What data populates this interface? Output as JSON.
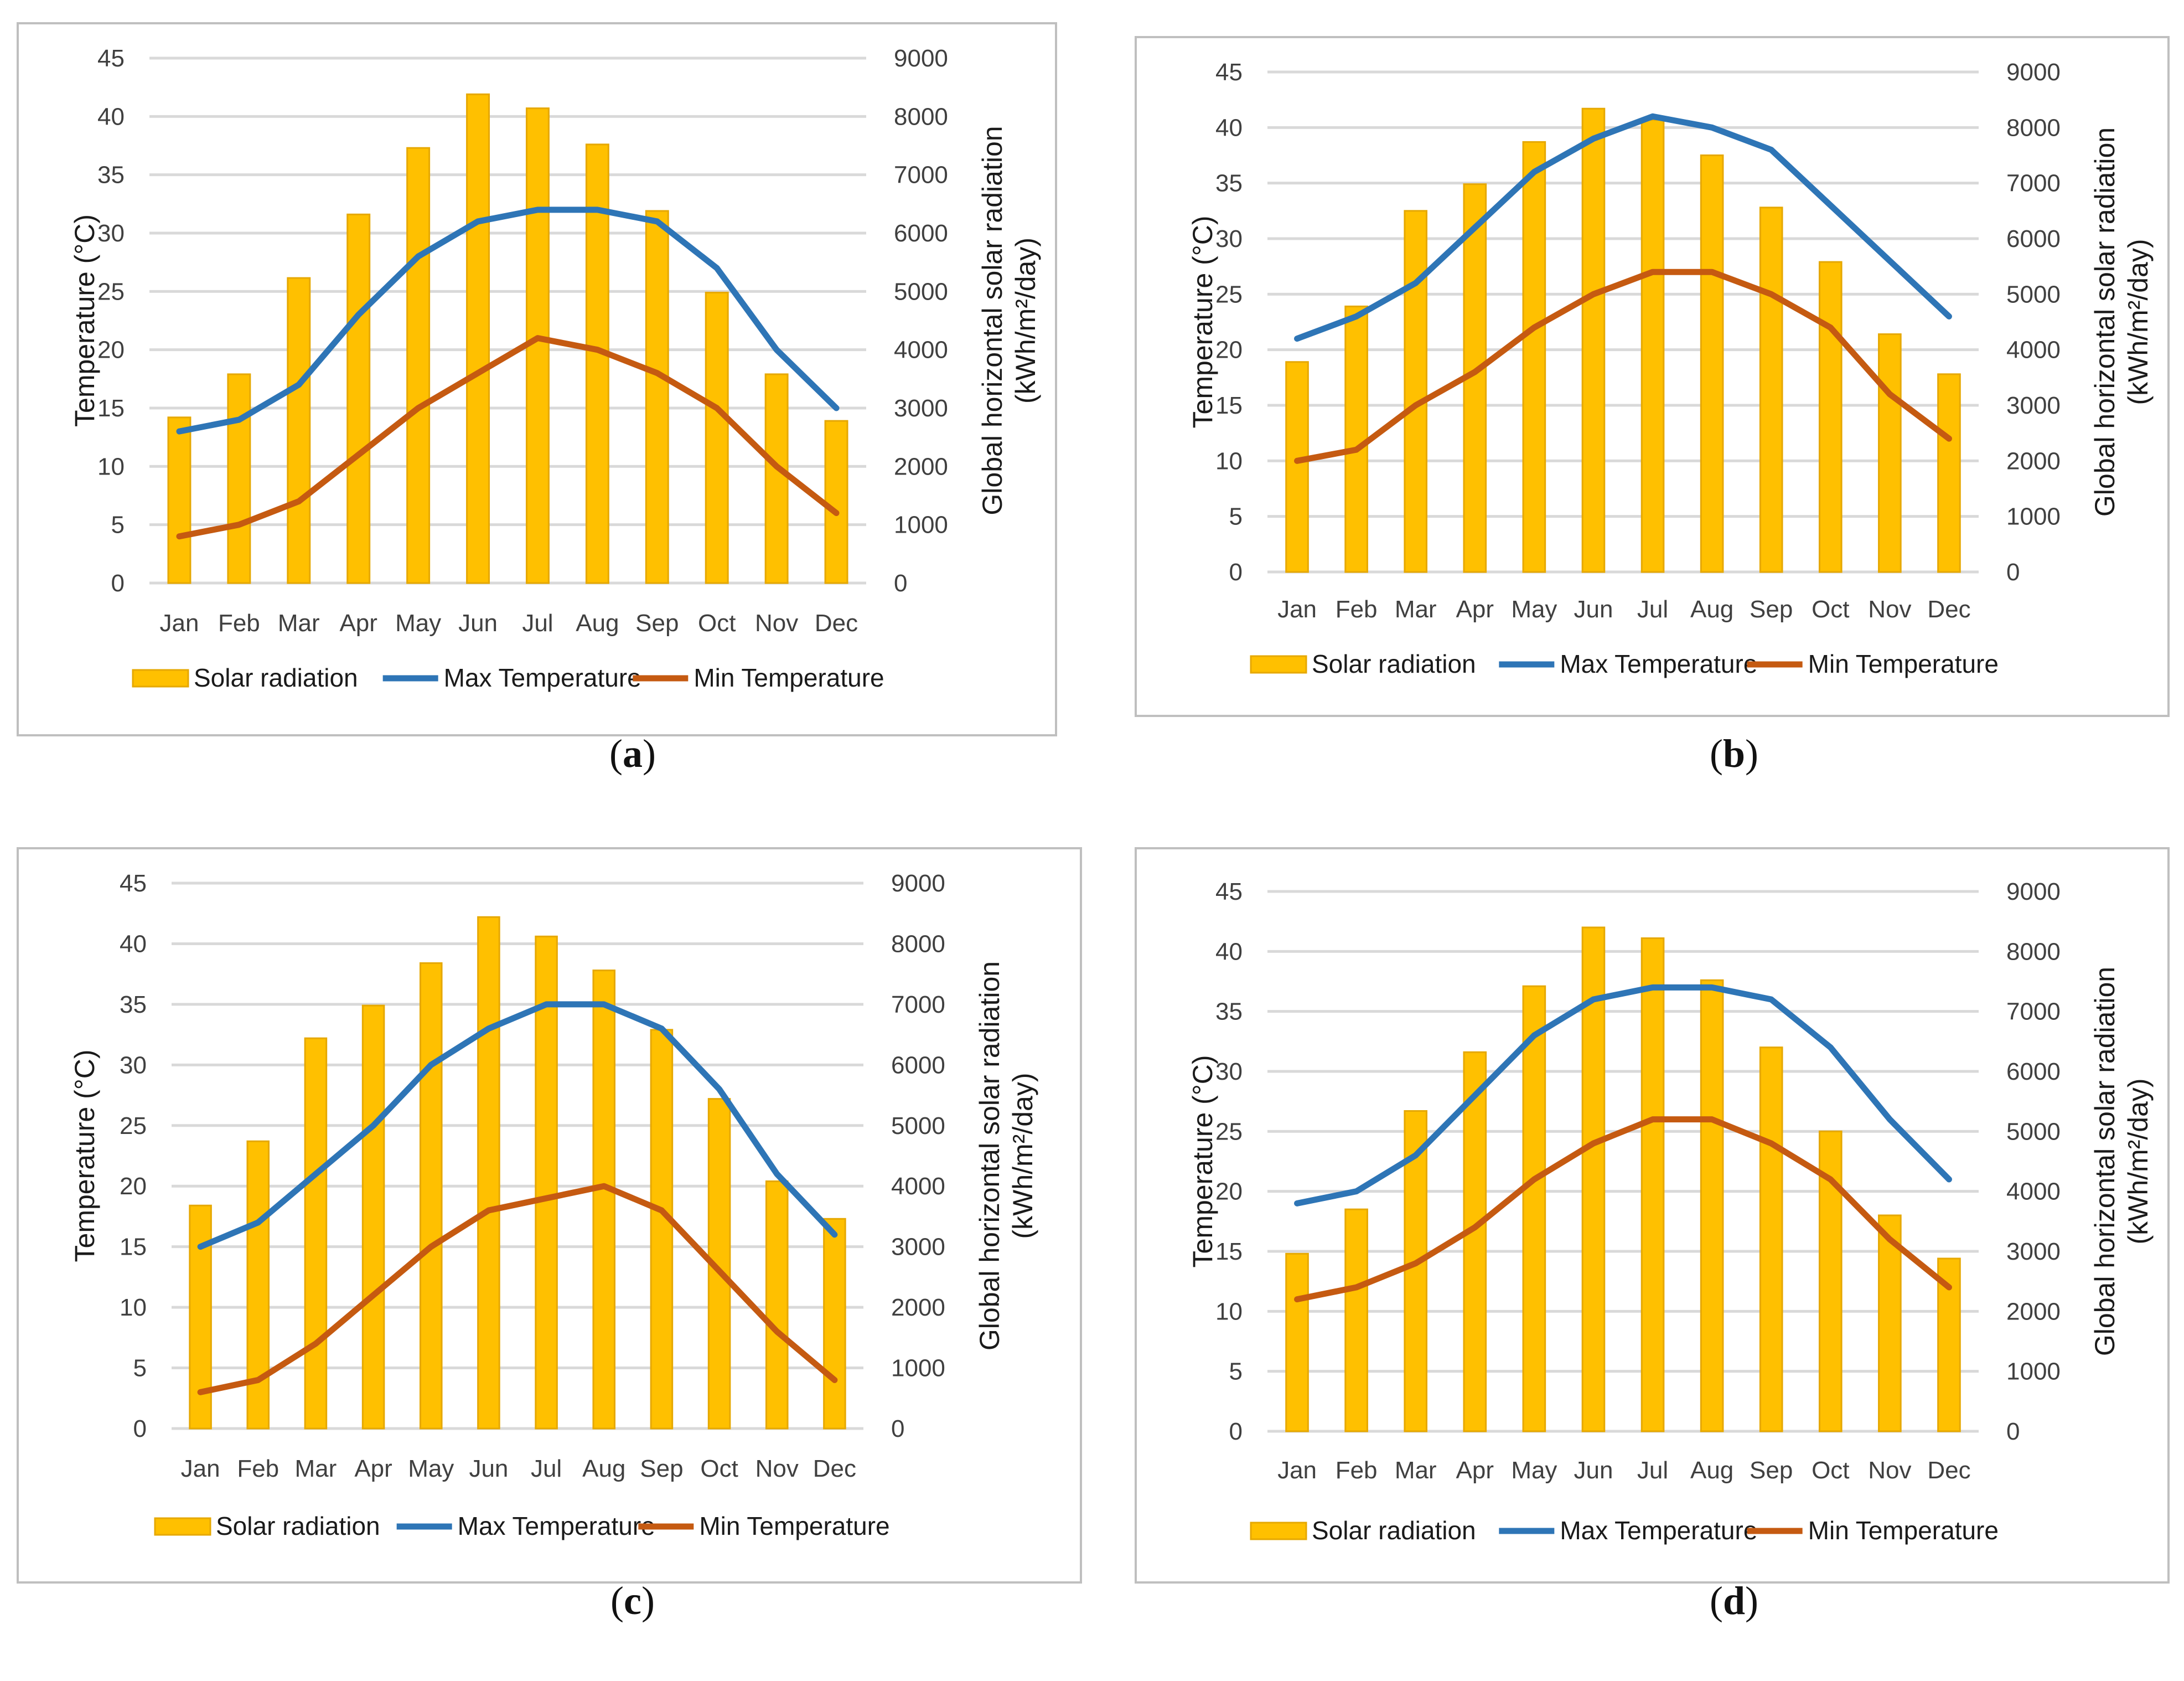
{
  "chart_data": [
    {
      "type": "bar+line",
      "panel": "a",
      "categories": [
        "Jan",
        "Feb",
        "Mar",
        "Apr",
        "May",
        "Jun",
        "Jul",
        "Aug",
        "Sep",
        "Oct",
        "Nov",
        "Dec"
      ],
      "series": [
        {
          "name": "Solar radiation",
          "axis": "right",
          "kind": "bar",
          "values": [
            2840,
            3580,
            5230,
            6320,
            7460,
            8380,
            8140,
            7520,
            6380,
            4980,
            3580,
            2780
          ]
        },
        {
          "name": "Max Temperature",
          "axis": "left",
          "kind": "line",
          "values": [
            13,
            14,
            17,
            23,
            28,
            31,
            32,
            32,
            31,
            27,
            20,
            15
          ]
        },
        {
          "name": "Min Temperature",
          "axis": "left",
          "kind": "line",
          "values": [
            4,
            5,
            7,
            11,
            15,
            18,
            21,
            20,
            18,
            15,
            10,
            6
          ]
        }
      ],
      "ylabel": "Temperature (°C)",
      "y2label_line1": "Global horizontal solar radiation",
      "y2label_line2": "(kWh/m²/day)",
      "ylim": [
        0,
        45
      ],
      "y2lim": [
        0,
        9000
      ],
      "yticks": [
        "0",
        "5",
        "10",
        "15",
        "20",
        "25",
        "30",
        "35",
        "40",
        "45"
      ],
      "y2ticks": [
        "0",
        "1000",
        "2000",
        "3000",
        "4000",
        "5000",
        "6000",
        "7000",
        "8000",
        "9000"
      ],
      "caption": "a"
    },
    {
      "type": "bar+line",
      "panel": "b",
      "categories": [
        "Jan",
        "Feb",
        "Mar",
        "Apr",
        "May",
        "Jun",
        "Jul",
        "Aug",
        "Sep",
        "Oct",
        "Nov",
        "Dec"
      ],
      "series": [
        {
          "name": "Solar radiation",
          "axis": "right",
          "kind": "bar",
          "values": [
            3780,
            4780,
            6500,
            6980,
            7740,
            8340,
            8140,
            7500,
            6560,
            5580,
            4280,
            3560
          ]
        },
        {
          "name": "Max Temperature",
          "axis": "left",
          "kind": "line",
          "values": [
            21,
            23,
            26,
            31,
            36,
            39,
            41,
            40,
            38,
            33,
            28,
            23
          ]
        },
        {
          "name": "Min Temperature",
          "axis": "left",
          "kind": "line",
          "values": [
            10,
            11,
            15,
            18,
            22,
            25,
            27,
            27,
            25,
            22,
            16,
            12
          ]
        }
      ],
      "ylabel": "Temperature (°C)",
      "y2label_line1": "Global horizontal solar radiation",
      "y2label_line2": "(kWh/m²/day)",
      "ylim": [
        0,
        45
      ],
      "y2lim": [
        0,
        9000
      ],
      "yticks": [
        "0",
        "5",
        "10",
        "15",
        "20",
        "25",
        "30",
        "35",
        "40",
        "45"
      ],
      "y2ticks": [
        "0",
        "1000",
        "2000",
        "3000",
        "4000",
        "5000",
        "6000",
        "7000",
        "8000",
        "9000"
      ],
      "caption": "b"
    },
    {
      "type": "bar+line",
      "panel": "c",
      "categories": [
        "Jan",
        "Feb",
        "Mar",
        "Apr",
        "May",
        "Jun",
        "Jul",
        "Aug",
        "Sep",
        "Oct",
        "Nov",
        "Dec"
      ],
      "series": [
        {
          "name": "Solar radiation",
          "axis": "right",
          "kind": "bar",
          "values": [
            3680,
            4740,
            6440,
            6980,
            7680,
            8440,
            8120,
            7560,
            6580,
            5440,
            4080,
            3460
          ]
        },
        {
          "name": "Max Temperature",
          "axis": "left",
          "kind": "line",
          "values": [
            15,
            17,
            21,
            25,
            30,
            33,
            35,
            35,
            33,
            28,
            21,
            16
          ]
        },
        {
          "name": "Min Temperature",
          "axis": "left",
          "kind": "line",
          "values": [
            3,
            4,
            7,
            11,
            15,
            18,
            19,
            20,
            18,
            13,
            8,
            4
          ]
        }
      ],
      "ylabel": "Temperature (°C)",
      "y2label_line1": "Global horizontal solar radiation",
      "y2label_line2": "(kWh/m²/day)",
      "ylim": [
        0,
        45
      ],
      "y2lim": [
        0,
        9000
      ],
      "yticks": [
        "0",
        "5",
        "10",
        "15",
        "20",
        "25",
        "30",
        "35",
        "40",
        "45"
      ],
      "y2ticks": [
        "0",
        "1000",
        "2000",
        "3000",
        "4000",
        "5000",
        "6000",
        "7000",
        "8000",
        "9000"
      ],
      "caption": "c"
    },
    {
      "type": "bar+line",
      "panel": "d",
      "categories": [
        "Jan",
        "Feb",
        "Mar",
        "Apr",
        "May",
        "Jun",
        "Jul",
        "Aug",
        "Sep",
        "Oct",
        "Nov",
        "Dec"
      ],
      "series": [
        {
          "name": "Solar radiation",
          "axis": "right",
          "kind": "bar",
          "values": [
            2960,
            3700,
            5340,
            6320,
            7420,
            8400,
            8220,
            7520,
            6400,
            5000,
            3600,
            2880
          ]
        },
        {
          "name": "Max Temperature",
          "axis": "left",
          "kind": "line",
          "values": [
            19,
            20,
            23,
            28,
            33,
            36,
            37,
            37,
            36,
            32,
            26,
            21
          ]
        },
        {
          "name": "Min Temperature",
          "axis": "left",
          "kind": "line",
          "values": [
            11,
            12,
            14,
            17,
            21,
            24,
            26,
            26,
            24,
            21,
            16,
            12
          ]
        }
      ],
      "ylabel": "Temperature (°C)",
      "y2label_line1": "Global horizontal solar radiation",
      "y2label_line2": "(kWh/m²/day)",
      "ylim": [
        0,
        45
      ],
      "y2lim": [
        0,
        9000
      ],
      "yticks": [
        "0",
        "5",
        "10",
        "15",
        "20",
        "25",
        "30",
        "35",
        "40",
        "45"
      ],
      "y2ticks": [
        "0",
        "1000",
        "2000",
        "3000",
        "4000",
        "5000",
        "6000",
        "7000",
        "8000",
        "9000"
      ],
      "caption": "d"
    }
  ],
  "colors": {
    "bar_fill": "#FFC000",
    "bar_stroke": "#E6A800",
    "max_line": "#2E75B6",
    "min_line": "#C55A11",
    "grid": "#D9D9D9",
    "axis_text": "#404040",
    "frame": "#BFBFBF"
  }
}
